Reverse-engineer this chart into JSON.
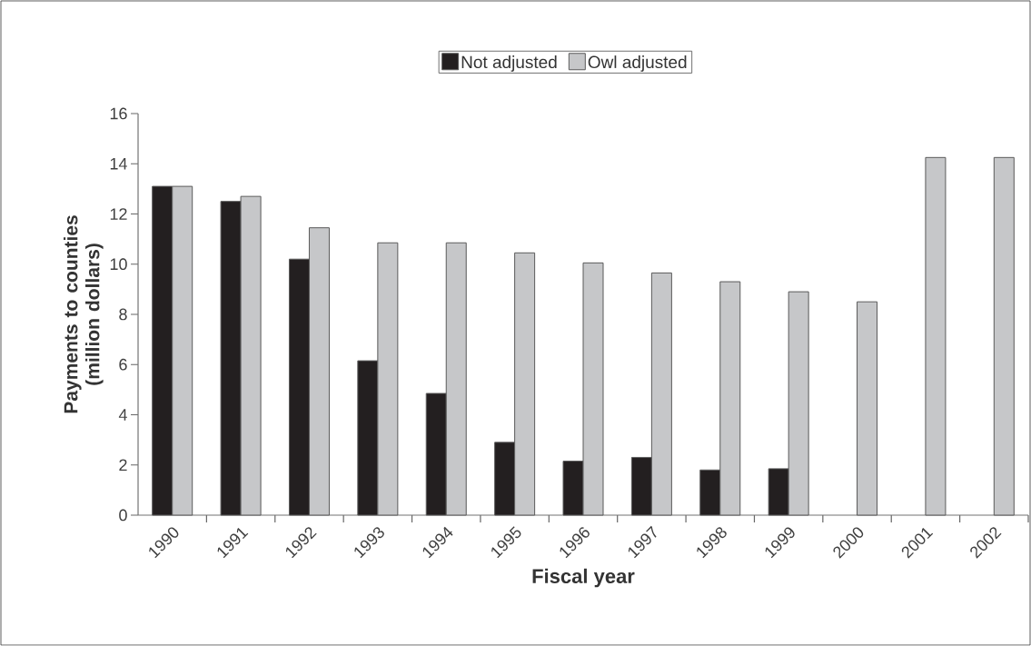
{
  "chart_data": {
    "type": "bar",
    "xlabel": "Fiscal year",
    "ylabel": "Payments to counties (million dollars)",
    "categories": [
      "1990",
      "1991",
      "1992",
      "1993",
      "1994",
      "1995",
      "1996",
      "1997",
      "1998",
      "1999",
      "2000",
      "2001",
      "2002"
    ],
    "series": [
      {
        "name": "Not adjusted",
        "color": "#231f20",
        "values": [
          13.1,
          12.5,
          10.2,
          6.15,
          4.85,
          2.9,
          2.15,
          2.3,
          1.8,
          1.85,
          null,
          null,
          null
        ]
      },
      {
        "name": "Owl adjusted",
        "color": "#c6c7c9",
        "values": [
          13.1,
          12.7,
          11.45,
          10.85,
          10.85,
          10.45,
          10.05,
          9.65,
          9.3,
          8.9,
          8.5,
          14.25,
          14.25
        ]
      }
    ],
    "ylim": [
      0,
      16
    ],
    "yticks": [
      0,
      2,
      4,
      6,
      8,
      10,
      12,
      14,
      16
    ],
    "grid": false,
    "legend": "top"
  }
}
